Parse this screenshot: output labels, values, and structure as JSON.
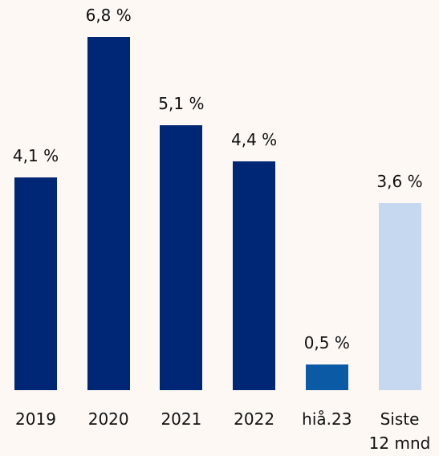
{
  "chart_data": {
    "type": "bar",
    "categories": [
      "2019",
      "2020",
      "2021",
      "2022",
      "hiå.23",
      "Siste 12 mnd"
    ],
    "values": [
      4.1,
      6.8,
      5.1,
      4.4,
      0.5,
      3.6
    ],
    "value_labels": [
      "4,1 %",
      "6,8 %",
      "5,1 %",
      "4,4 %",
      "0,5 %",
      "3,6 %"
    ],
    "colors": [
      "#002776",
      "#002776",
      "#002776",
      "#002776",
      "#0b5aa6",
      "#c6d8f0"
    ]
  }
}
